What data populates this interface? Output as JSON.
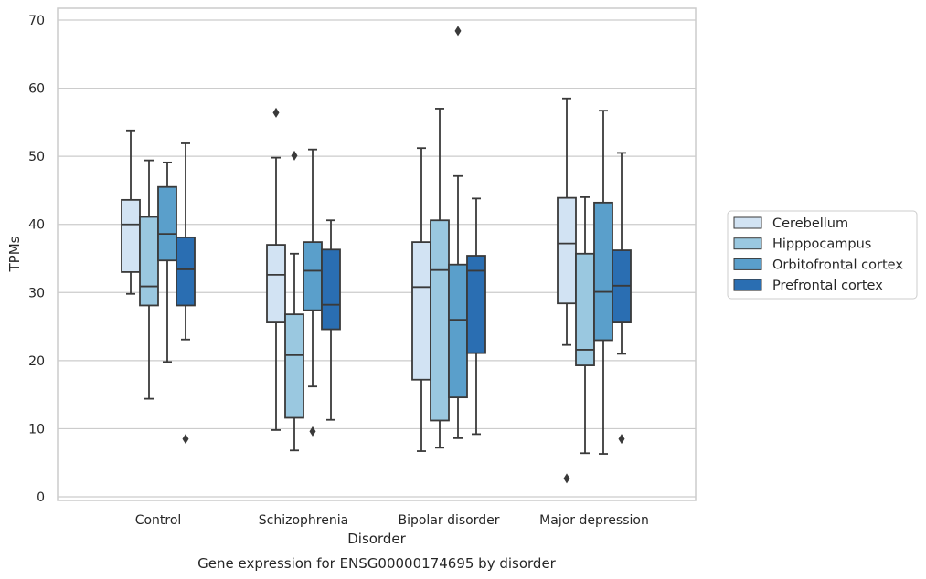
{
  "chart_data": {
    "type": "box",
    "title": "Gene expression for ENSG00000174695 by disorder",
    "xlabel": "Disorder",
    "ylabel": "TPMs",
    "ylim": [
      -0.5,
      72
    ],
    "yticks": [
      0,
      10,
      20,
      30,
      40,
      50,
      60,
      70
    ],
    "grid": "horizontal",
    "legend_position": "right",
    "categories": [
      "Control",
      "Schizophrenia",
      "Bipolar disorder",
      "Major depression"
    ],
    "series": [
      {
        "name": "Cerebellum",
        "color": "#d2e3f3",
        "boxes": [
          {
            "whisker_low": 29.8,
            "q1": 33.0,
            "median": 40.0,
            "q3": 43.6,
            "whisker_high": 53.8,
            "outliers": []
          },
          {
            "whisker_low": 9.8,
            "q1": 25.6,
            "median": 32.6,
            "q3": 37.0,
            "whisker_high": 49.8,
            "outliers": [
              56.4
            ]
          },
          {
            "whisker_low": 6.7,
            "q1": 17.2,
            "median": 30.8,
            "q3": 37.4,
            "whisker_high": 51.2,
            "outliers": []
          },
          {
            "whisker_low": 22.3,
            "q1": 28.4,
            "median": 37.2,
            "q3": 43.9,
            "whisker_high": 58.5,
            "outliers": [
              2.7
            ]
          }
        ]
      },
      {
        "name": "Hipppocampus",
        "color": "#9ac8e0",
        "boxes": [
          {
            "whisker_low": 14.4,
            "q1": 28.1,
            "median": 30.9,
            "q3": 41.1,
            "whisker_high": 49.4,
            "outliers": []
          },
          {
            "whisker_low": 6.8,
            "q1": 11.6,
            "median": 20.8,
            "q3": 26.8,
            "whisker_high": 35.7,
            "outliers": [
              50.1
            ]
          },
          {
            "whisker_low": 7.2,
            "q1": 11.2,
            "median": 33.3,
            "q3": 40.6,
            "whisker_high": 57.0,
            "outliers": []
          },
          {
            "whisker_low": 6.4,
            "q1": 19.3,
            "median": 21.6,
            "q3": 35.7,
            "whisker_high": 44.0,
            "outliers": []
          }
        ]
      },
      {
        "name": "Orbitofrontal cortex",
        "color": "#5a9fcb",
        "boxes": [
          {
            "whisker_low": 19.8,
            "q1": 34.7,
            "median": 38.6,
            "q3": 45.5,
            "whisker_high": 49.1,
            "outliers": []
          },
          {
            "whisker_low": 16.2,
            "q1": 27.4,
            "median": 33.2,
            "q3": 37.4,
            "whisker_high": 51.0,
            "outliers": [
              9.6
            ]
          },
          {
            "whisker_low": 8.6,
            "q1": 14.6,
            "median": 26.0,
            "q3": 34.1,
            "whisker_high": 47.1,
            "outliers": [
              68.4
            ]
          },
          {
            "whisker_low": 6.3,
            "q1": 23.0,
            "median": 30.1,
            "q3": 43.2,
            "whisker_high": 56.7,
            "outliers": []
          }
        ]
      },
      {
        "name": "Prefrontal cortex",
        "color": "#2a6eb2",
        "boxes": [
          {
            "whisker_low": 23.1,
            "q1": 28.1,
            "median": 33.4,
            "q3": 38.1,
            "whisker_high": 51.9,
            "outliers": [
              8.5
            ]
          },
          {
            "whisker_low": 11.3,
            "q1": 24.6,
            "median": 28.2,
            "q3": 36.3,
            "whisker_high": 40.6,
            "outliers": []
          },
          {
            "whisker_low": 9.2,
            "q1": 21.1,
            "median": 33.2,
            "q3": 35.4,
            "whisker_high": 43.8,
            "outliers": []
          },
          {
            "whisker_low": 21.0,
            "q1": 25.6,
            "median": 31.0,
            "q3": 36.2,
            "whisker_high": 50.5,
            "outliers": [
              8.5
            ]
          }
        ]
      }
    ]
  }
}
